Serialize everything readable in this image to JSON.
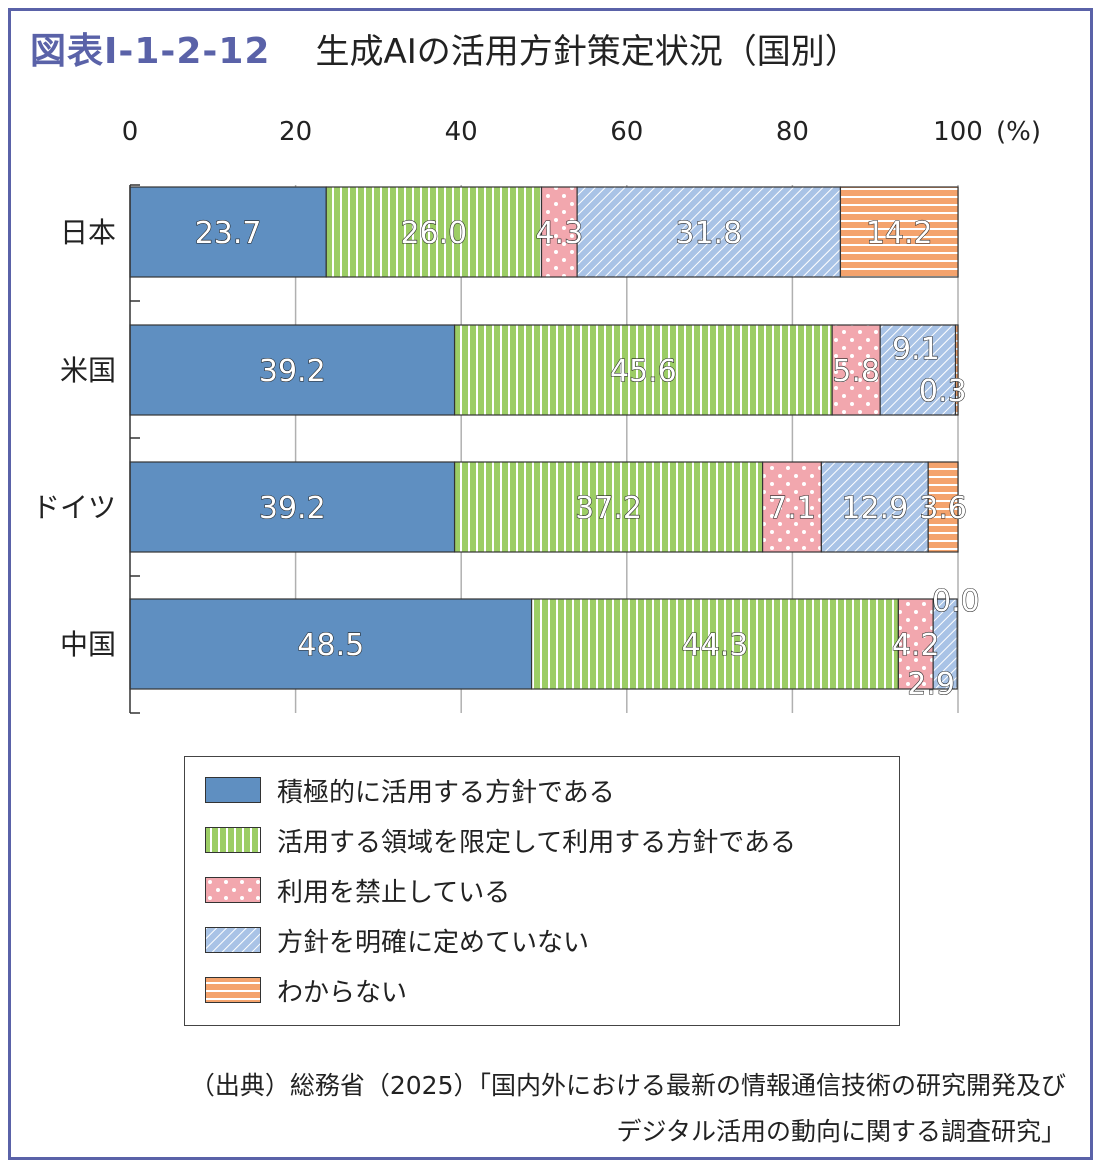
{
  "header": {
    "figure_number": "図表Ⅰ-1-2-12",
    "title": "生成AIの活用方針策定状況（国別）"
  },
  "colors": {
    "frame": "#5a62a8",
    "active": "#5f8fc1",
    "limited": "#9ccd65",
    "prohibited": "#f2a7ae",
    "undefined": "#a9c3e6",
    "unknown": "#f4a36d"
  },
  "chart_data": {
    "type": "bar",
    "orientation": "horizontal",
    "stacked": true,
    "categories": [
      "日本",
      "米国",
      "ドイツ",
      "中国"
    ],
    "series": [
      {
        "name": "積極的に活用する方針である",
        "values": [
          23.7,
          39.2,
          39.2,
          48.5
        ],
        "pattern": "solid"
      },
      {
        "name": "活用する領域を限定して利用する方針である",
        "values": [
          26.0,
          45.6,
          37.2,
          44.3
        ],
        "pattern": "vertical-stripes"
      },
      {
        "name": "利用を禁止している",
        "values": [
          4.3,
          5.8,
          7.1,
          4.2
        ],
        "pattern": "dots"
      },
      {
        "name": "方針を明確に定めていない",
        "values": [
          31.8,
          9.1,
          12.9,
          2.9
        ],
        "pattern": "diagonal-stripes"
      },
      {
        "name": "わからない",
        "values": [
          14.2,
          0.3,
          3.6,
          0.0
        ],
        "pattern": "horizontal-stripes"
      }
    ],
    "data_labels": [
      [
        "23.7",
        "26.0",
        "4.3",
        "31.8",
        "14.2"
      ],
      [
        "39.2",
        "45.6",
        "5.8",
        "9.1",
        "0.3"
      ],
      [
        "39.2",
        "37.2",
        "7.1",
        "12.9",
        "3.6"
      ],
      [
        "48.5",
        "44.3",
        "4.2",
        "2.9",
        "0.0"
      ]
    ],
    "x_ticks": [
      "0",
      "20",
      "40",
      "60",
      "80",
      "100"
    ],
    "x_unit": "(%)",
    "xlim": [
      0,
      100
    ],
    "grid": true,
    "legend_position": "bottom"
  },
  "source": {
    "line1": "（出典）総務省（2025）「国内外における最新の情報通信技術の研究開発及び",
    "line2": "デジタル活用の動向に関する調査研究」"
  }
}
